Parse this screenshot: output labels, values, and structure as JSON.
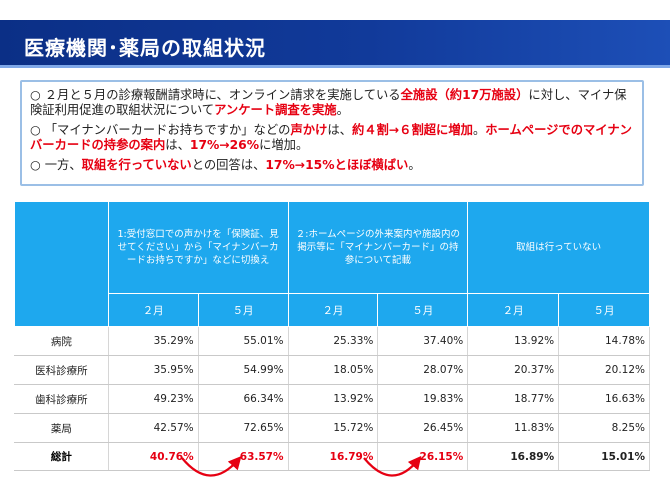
{
  "title": "医療機関･薬局の取組状況",
  "summary": {
    "bullet1": {
      "symbol": "○",
      "text_a": "２月と５月の診療報酬請求時に、オンライン請求を実施している",
      "highlight_a": "全施設（約17万施設）",
      "text_b": "に対し、マイナ保険証利用促進の取組状況について",
      "highlight_b": "アンケート調査を実施",
      "text_c": "。"
    },
    "bullet2": {
      "symbol": "○",
      "text_a": "「マイナンバーカードお持ちですか」などの",
      "highlight_a": "声かけ",
      "text_b": "は、",
      "highlight_b": "約４割→６割超に増加",
      "text_c": "。",
      "highlight_c": "ホームページでのマイナンバーカードの持参の案内",
      "text_d": "は、",
      "highlight_d": "17%→26%",
      "text_e": "に増加。"
    },
    "bullet3": {
      "symbol": "○",
      "text_a": "一方、",
      "highlight_a": "取組を行っていない",
      "text_b": "との回答は、",
      "highlight_b": "17%→15%とほぼ横ばい",
      "text_c": "。"
    }
  },
  "table": {
    "group_headers": [
      "1:受付窓口での声かけを「保険証、見せてください」から「マイナンバーカードお持ちですか」などに切換え",
      "２:ホームページの外来案内や施設内の掲示等に「マイナンバーカード」の持参について記載",
      "取組は行っていない"
    ],
    "month_headers": [
      "２月",
      "５月",
      "２月",
      "５月",
      "２月",
      "５月"
    ],
    "rows": [
      {
        "name": "病院",
        "values": [
          "35.29%",
          "55.01%",
          "25.33%",
          "37.40%",
          "13.92%",
          "14.78%"
        ]
      },
      {
        "name": "医科診療所",
        "values": [
          "35.95%",
          "54.99%",
          "18.05%",
          "28.07%",
          "20.37%",
          "20.12%"
        ]
      },
      {
        "name": "歯科診療所",
        "values": [
          "49.23%",
          "66.34%",
          "13.92%",
          "19.83%",
          "18.77%",
          "16.63%"
        ]
      },
      {
        "name": "薬局",
        "values": [
          "42.57%",
          "72.65%",
          "15.72%",
          "26.45%",
          "11.83%",
          "8.25%"
        ]
      }
    ],
    "total": {
      "name": "総計",
      "values": [
        "40.76%",
        "63.57%",
        "16.79%",
        "26.15%",
        "16.89%",
        "15.01%"
      ]
    }
  },
  "colors": {
    "title_bar": "#113a9a",
    "header_blue": "#1ea8ee",
    "highlight_red": "#e60012",
    "box_border": "#9bbfe6"
  }
}
